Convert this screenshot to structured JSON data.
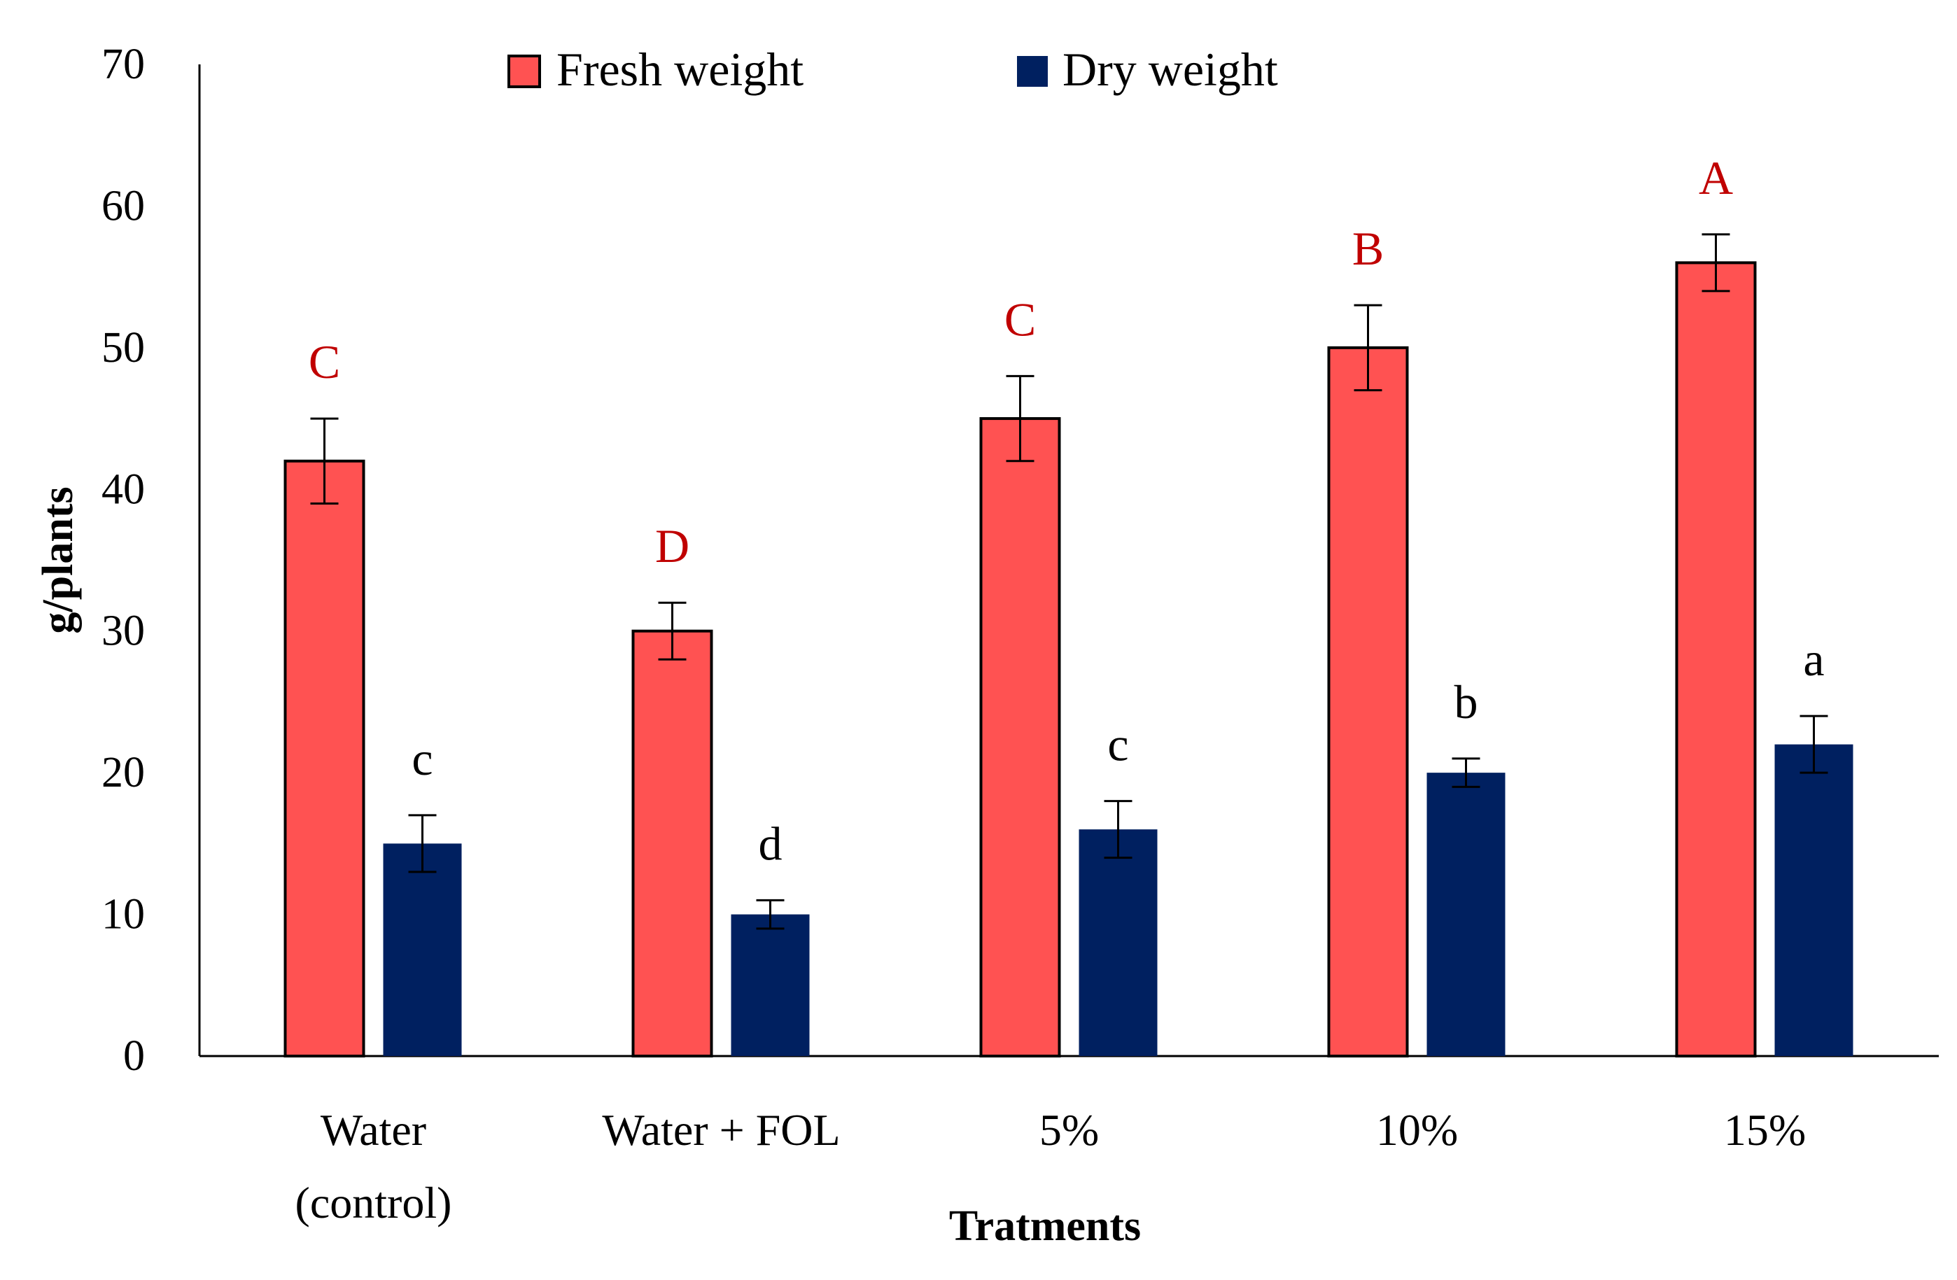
{
  "chart_data": {
    "type": "bar",
    "title": "",
    "xlabel": "Tratments",
    "ylabel": "g/plants",
    "ylim": [
      0,
      70
    ],
    "yticks": [
      0,
      10,
      20,
      30,
      40,
      50,
      60,
      70
    ],
    "categories": [
      [
        "Water",
        "(control)"
      ],
      [
        "Water + FOL"
      ],
      [
        "5%"
      ],
      [
        "10%"
      ],
      [
        "15%"
      ]
    ],
    "series": [
      {
        "name": "Fresh weight",
        "color": "#FF5252",
        "values": [
          42,
          30,
          45,
          50,
          56
        ],
        "errors": [
          3,
          2,
          3,
          3,
          2
        ],
        "letters": [
          "C",
          "D",
          "C",
          "B",
          "A"
        ],
        "letter_color": "#C00000",
        "outlined": true
      },
      {
        "name": "Dry weight",
        "color": "#002060",
        "values": [
          15,
          10,
          16,
          20,
          22
        ],
        "errors": [
          2,
          1,
          2,
          1,
          2
        ],
        "letters": [
          "c",
          "d",
          "c",
          "b",
          "a"
        ],
        "letter_color": "#000000",
        "outlined": false
      }
    ],
    "legend": "top",
    "grid": false
  }
}
